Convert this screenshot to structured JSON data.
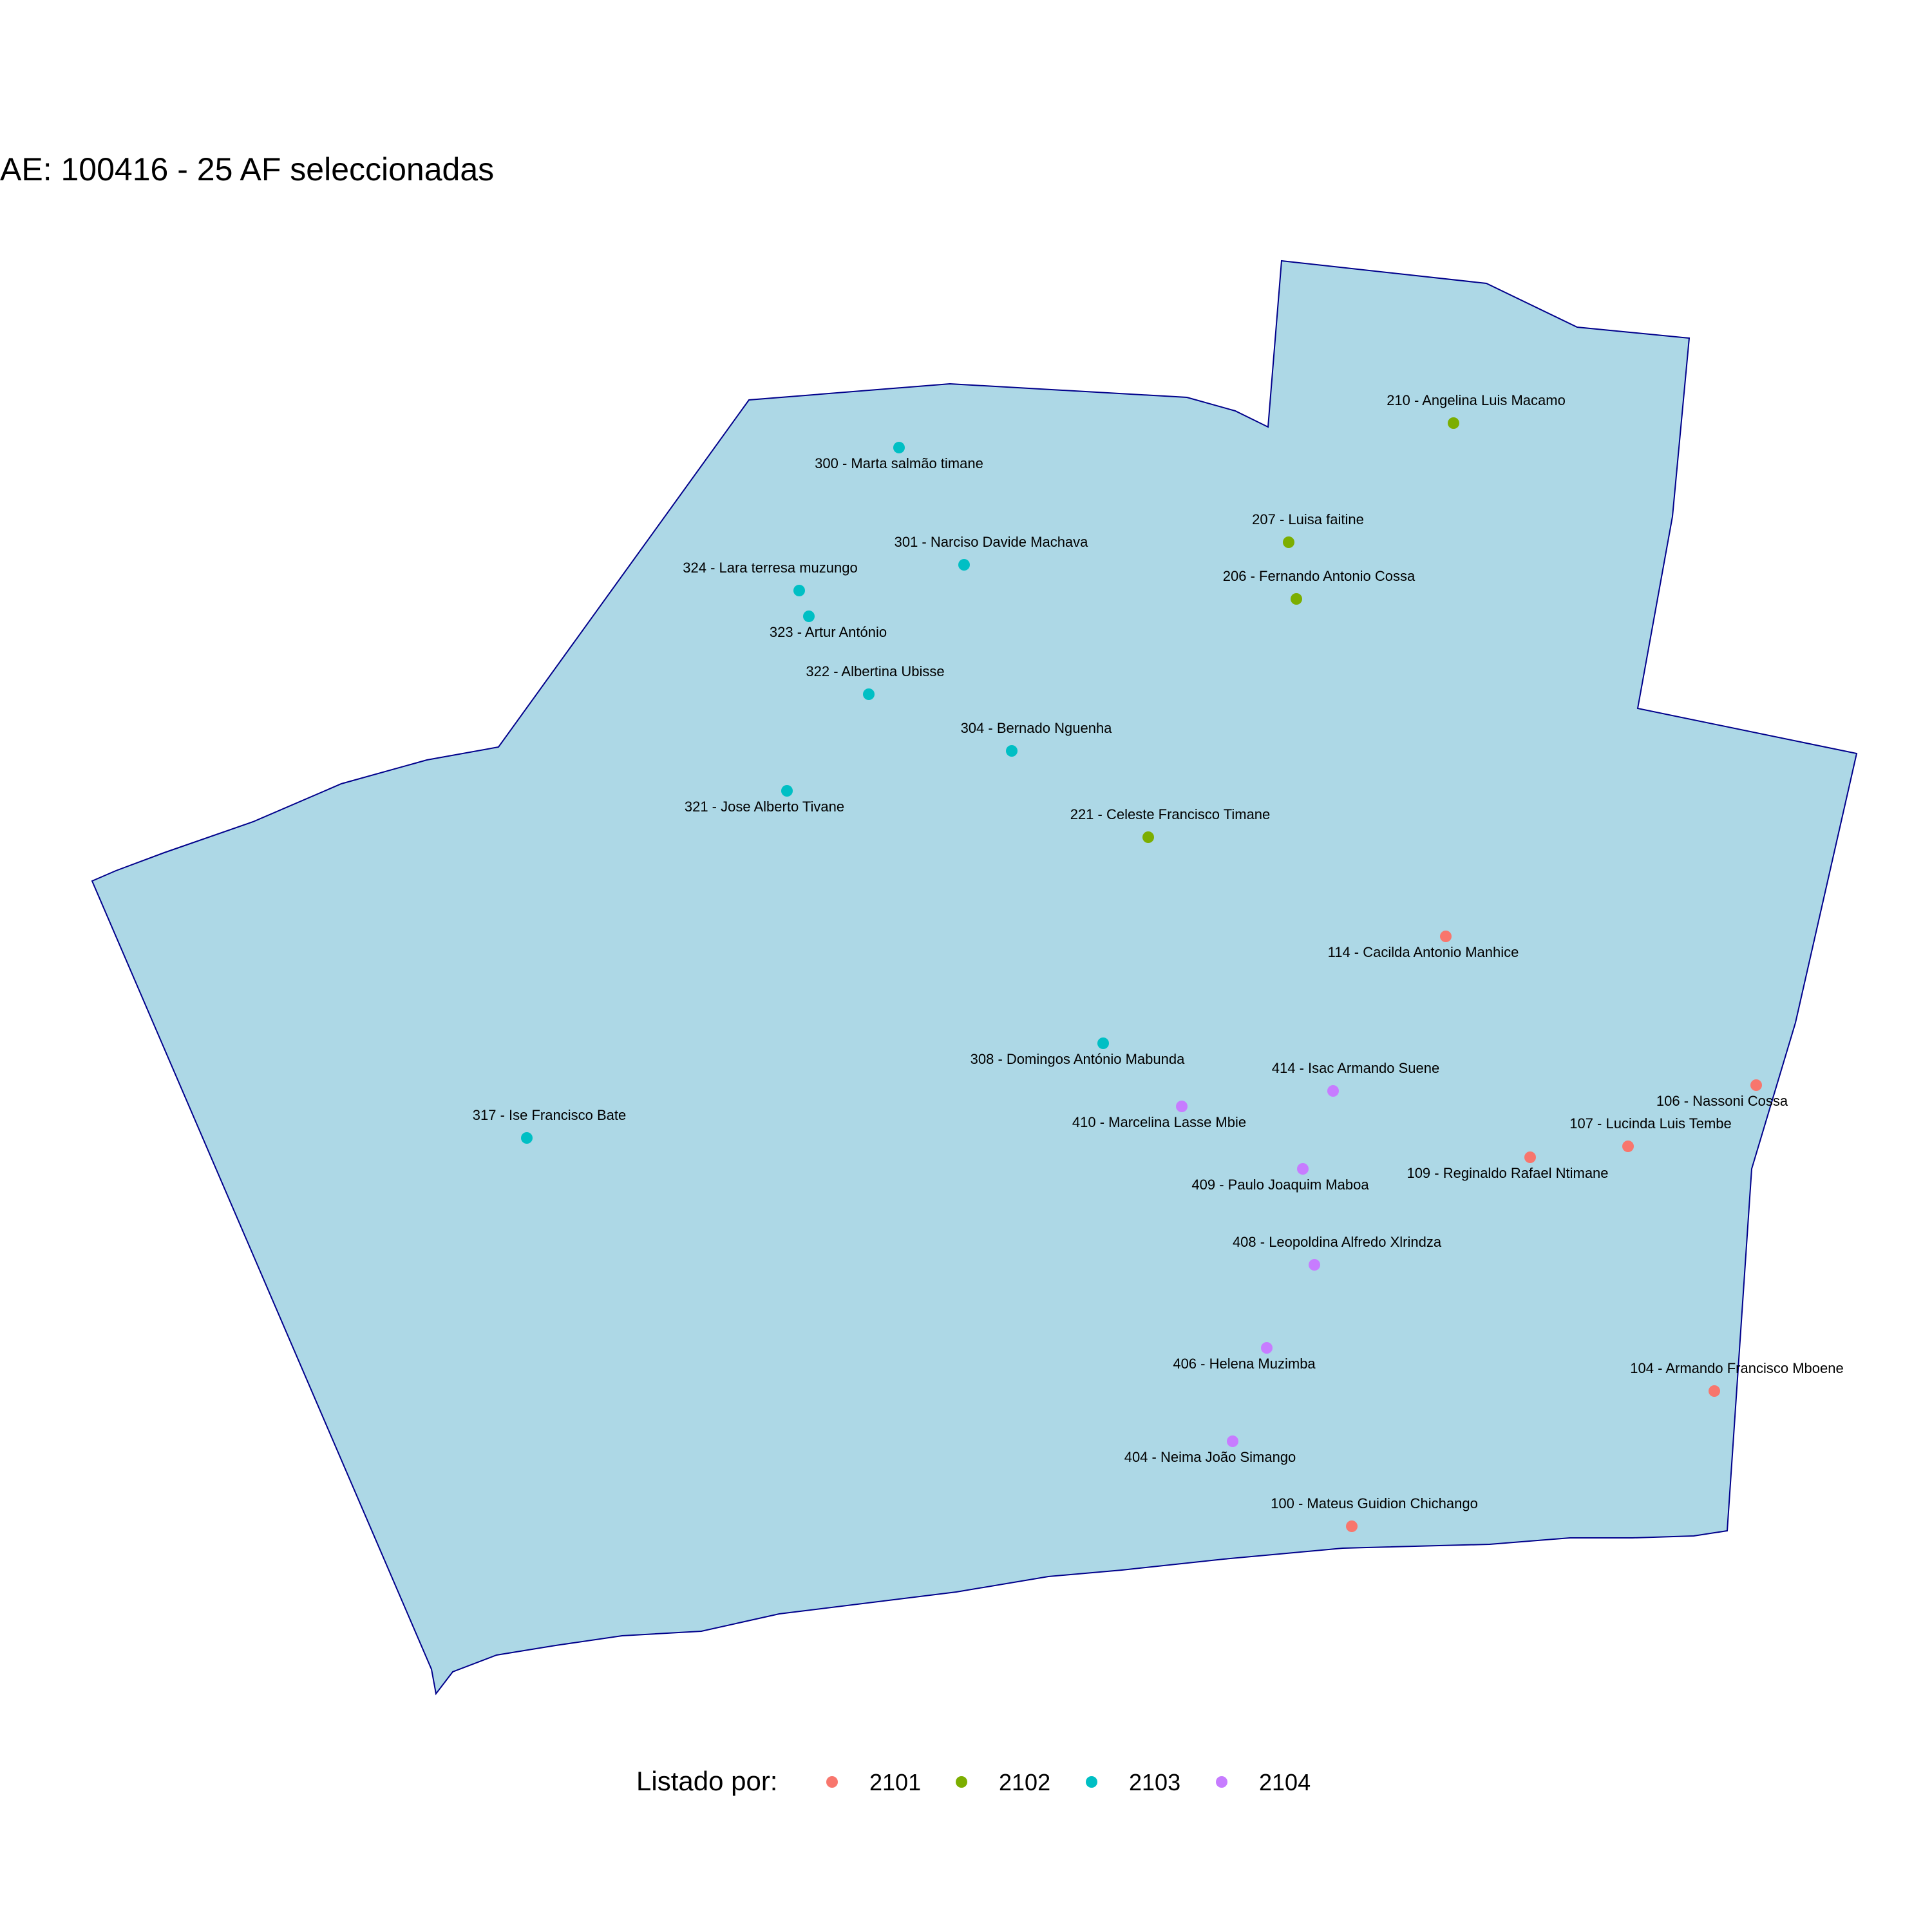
{
  "title": "AE: 100416 - 25  AF seleccionadas",
  "colors": {
    "area_fill": "#ADD8E6",
    "area_stroke": "#00008B",
    "2101": "#F8766D",
    "2102": "#7CAE00",
    "2103": "#00BFC4",
    "2104": "#C77CFF"
  },
  "legend": {
    "title": "Listado por:",
    "items": [
      {
        "key": "2101",
        "label": "2101"
      },
      {
        "key": "2102",
        "label": "2102"
      },
      {
        "key": "2103",
        "label": "2103"
      },
      {
        "key": "2104",
        "label": "2104"
      }
    ]
  },
  "points": [
    {
      "label": "210 - Angelina  Luis Macamo",
      "group": "2102"
    },
    {
      "label": "300 - Marta salmão timane",
      "group": "2103"
    },
    {
      "label": "207 - Luisa faitine",
      "group": "2102"
    },
    {
      "label": "301 - Narciso Davide Machava",
      "group": "2103"
    },
    {
      "label": "324 - Lara terresa muzungo",
      "group": "2103"
    },
    {
      "label": "206 - Fernando Antonio  Cossa",
      "group": "2102"
    },
    {
      "label": "323 - Artur António",
      "group": "2103"
    },
    {
      "label": "322 - Albertina Ubisse",
      "group": "2103"
    },
    {
      "label": "304 - Bernado Nguenha",
      "group": "2103"
    },
    {
      "label": "321 - Jose Alberto Tivane",
      "group": "2103"
    },
    {
      "label": "221 - Celeste Francisco  Timane",
      "group": "2102"
    },
    {
      "label": "114 - Cacilda Antonio Manhice",
      "group": "2101"
    },
    {
      "label": "308 - Domingos António Mabunda",
      "group": "2103"
    },
    {
      "label": "414 - Isac Armando Suene",
      "group": "2104"
    },
    {
      "label": "106 - Nassoni Cossa",
      "group": "2101"
    },
    {
      "label": "410 - Marcelina Lasse Mbie",
      "group": "2104"
    },
    {
      "label": "317 - Ise Francisco Bate",
      "group": "2103"
    },
    {
      "label": "107 - Lucinda Luis Tembe",
      "group": "2101"
    },
    {
      "label": "109 - Reginaldo Rafael Ntimane",
      "group": "2101"
    },
    {
      "label": "409 - Paulo Joaquim  Maboa",
      "group": "2104"
    },
    {
      "label": "408 - Leopoldina Alfredo Xlrindza",
      "group": "2104"
    },
    {
      "label": "406 - Helena Muzimba",
      "group": "2104"
    },
    {
      "label": "104 - Armando Francisco Mboene",
      "group": "2101"
    },
    {
      "label": "404 - Neima João Simango",
      "group": "2104"
    },
    {
      "label": "100 - Mateus Guidion Chichango",
      "group": "2101"
    }
  ]
}
